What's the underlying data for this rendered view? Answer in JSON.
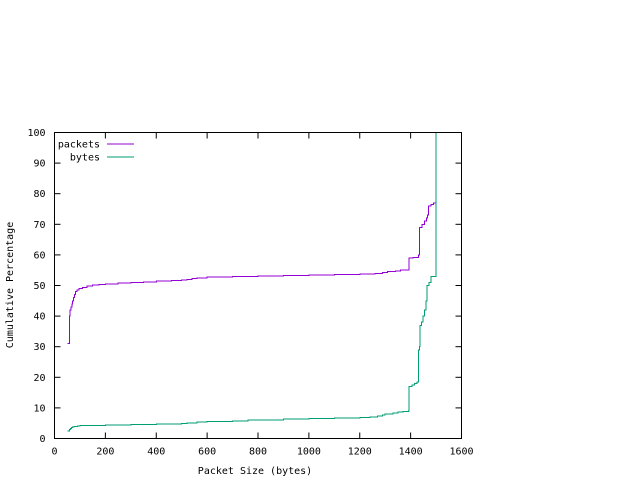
{
  "chart_data": {
    "type": "line",
    "title": "",
    "xlabel": "Packet Size (bytes)",
    "ylabel": "Cumulative Percentage",
    "xlim": [
      0,
      1600
    ],
    "ylim": [
      0,
      100
    ],
    "xticks": [
      0,
      200,
      400,
      600,
      800,
      1000,
      1200,
      1400,
      1600
    ],
    "yticks": [
      0,
      10,
      20,
      30,
      40,
      50,
      60,
      70,
      80,
      90,
      100
    ],
    "xtick_labels": [
      "0",
      "200",
      "400",
      "600",
      "800",
      "1000",
      "1200",
      "1400",
      "1600"
    ],
    "ytick_labels": [
      "0",
      "10",
      "20",
      "30",
      "40",
      "50",
      "60",
      "70",
      "80",
      "90",
      "100"
    ],
    "grid": false,
    "legend_position": "top-left",
    "series": [
      {
        "name": "packets",
        "color": "#9400d3",
        "points": [
          [
            52,
            31
          ],
          [
            56,
            31
          ],
          [
            58,
            40
          ],
          [
            60,
            42
          ],
          [
            64,
            43
          ],
          [
            68,
            44
          ],
          [
            70,
            45
          ],
          [
            74,
            46
          ],
          [
            78,
            47
          ],
          [
            82,
            48
          ],
          [
            88,
            48.6
          ],
          [
            96,
            49
          ],
          [
            110,
            49.4
          ],
          [
            128,
            49.8
          ],
          [
            150,
            50.1
          ],
          [
            175,
            50.3
          ],
          [
            200,
            50.5
          ],
          [
            250,
            50.8
          ],
          [
            300,
            51
          ],
          [
            350,
            51.2
          ],
          [
            400,
            51.4
          ],
          [
            460,
            51.6
          ],
          [
            500,
            51.8
          ],
          [
            520,
            52
          ],
          [
            540,
            52.3
          ],
          [
            560,
            52.5
          ],
          [
            600,
            52.7
          ],
          [
            650,
            52.8
          ],
          [
            700,
            52.9
          ],
          [
            800,
            53.1
          ],
          [
            900,
            53.3
          ],
          [
            1000,
            53.5
          ],
          [
            1100,
            53.6
          ],
          [
            1200,
            53.7
          ],
          [
            1260,
            53.9
          ],
          [
            1290,
            54.3
          ],
          [
            1310,
            54.6
          ],
          [
            1340,
            54.8
          ],
          [
            1360,
            55
          ],
          [
            1392,
            55
          ],
          [
            1393,
            59
          ],
          [
            1410,
            59.2
          ],
          [
            1430,
            60
          ],
          [
            1433,
            60
          ],
          [
            1434,
            69
          ],
          [
            1445,
            70
          ],
          [
            1455,
            71
          ],
          [
            1462,
            72
          ],
          [
            1466,
            73
          ],
          [
            1470,
            76
          ],
          [
            1480,
            76.5
          ],
          [
            1490,
            77
          ],
          [
            1499,
            77.5
          ],
          [
            1500,
            100
          ]
        ]
      },
      {
        "name": "bytes",
        "color": "#009e73",
        "points": [
          [
            52,
            2.5
          ],
          [
            56,
            2.5
          ],
          [
            58,
            3
          ],
          [
            62,
            3.3
          ],
          [
            66,
            3.6
          ],
          [
            70,
            3.8
          ],
          [
            76,
            4
          ],
          [
            90,
            4.1
          ],
          [
            100,
            4.2
          ],
          [
            150,
            4.3
          ],
          [
            200,
            4.4
          ],
          [
            300,
            4.6
          ],
          [
            400,
            4.7
          ],
          [
            500,
            4.9
          ],
          [
            520,
            5.1
          ],
          [
            560,
            5.4
          ],
          [
            600,
            5.6
          ],
          [
            700,
            5.8
          ],
          [
            760,
            6
          ],
          [
            800,
            6.1
          ],
          [
            900,
            6.3
          ],
          [
            1000,
            6.5
          ],
          [
            1100,
            6.7
          ],
          [
            1200,
            6.8
          ],
          [
            1240,
            7
          ],
          [
            1270,
            7.3
          ],
          [
            1290,
            7.7
          ],
          [
            1300,
            8
          ],
          [
            1330,
            8.3
          ],
          [
            1350,
            8.6
          ],
          [
            1370,
            8.8
          ],
          [
            1392,
            9
          ],
          [
            1393,
            17
          ],
          [
            1405,
            17.5
          ],
          [
            1415,
            18
          ],
          [
            1425,
            18.5
          ],
          [
            1430,
            19
          ],
          [
            1431,
            29
          ],
          [
            1434,
            30
          ],
          [
            1437,
            37
          ],
          [
            1442,
            38
          ],
          [
            1448,
            40
          ],
          [
            1454,
            42
          ],
          [
            1460,
            45
          ],
          [
            1464,
            50
          ],
          [
            1472,
            51
          ],
          [
            1480,
            53
          ],
          [
            1490,
            53
          ],
          [
            1500,
            100
          ]
        ]
      }
    ]
  }
}
